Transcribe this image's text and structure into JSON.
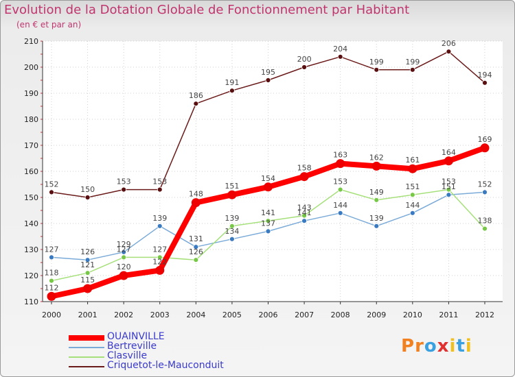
{
  "header": {
    "title": "Evolution de la Dotation Globale de Fonctionnement par Habitant",
    "subtitle": "(en € et par an)"
  },
  "logo": {
    "letters": [
      "P",
      "r",
      "o",
      "x",
      "i",
      "t",
      "i"
    ],
    "colors": [
      "#f08020",
      "#f08020",
      "#3aa0e0",
      "#e03030",
      "#f0c020",
      "#3aa0e0",
      "#f0c020"
    ]
  },
  "chart_data": {
    "type": "line",
    "title": "Evolution de la Dotation Globale de Fonctionnement par Habitant",
    "subtitle": "(en € et par an)",
    "xlabel": "",
    "ylabel": "",
    "ylim": [
      110,
      210
    ],
    "yticks": [
      110,
      120,
      130,
      140,
      150,
      160,
      170,
      180,
      190,
      200,
      210
    ],
    "grid": true,
    "legend_position": "bottom-left",
    "x": [
      "2000",
      "2001",
      "2002",
      "2003",
      "2004",
      "2005",
      "2006",
      "2007",
      "2008",
      "2009",
      "2010",
      "2011",
      "2012"
    ],
    "series": [
      {
        "name": "Criquetot-le-Mauconduit",
        "color": "#6b1a1a",
        "marker": "#5a1010",
        "values": [
          152,
          150,
          153,
          153,
          186,
          191,
          195,
          200,
          204,
          199,
          199,
          206,
          194
        ]
      },
      {
        "name": "Bertreville",
        "color": "#7aaad8",
        "marker": "#3a7ac0",
        "values": [
          127,
          126,
          129,
          139,
          131,
          134,
          137,
          141,
          144,
          139,
          144,
          151,
          152
        ]
      },
      {
        "name": "Clasville",
        "color": "#a6e07a",
        "marker": "#78c848",
        "values": [
          118,
          121,
          127,
          127,
          126,
          139,
          141,
          143,
          153,
          149,
          151,
          153,
          138
        ]
      },
      {
        "name": "OUAINVILLE",
        "color": "#ff0000",
        "marker": "#ee0000",
        "values": [
          112,
          115,
          120,
          122,
          148,
          151,
          154,
          158,
          163,
          162,
          161,
          164,
          169
        ]
      }
    ],
    "legend_order": [
      "OUAINVILLE",
      "Bertreville",
      "Clasville",
      "Criquetot-le-Mauconduit"
    ]
  }
}
